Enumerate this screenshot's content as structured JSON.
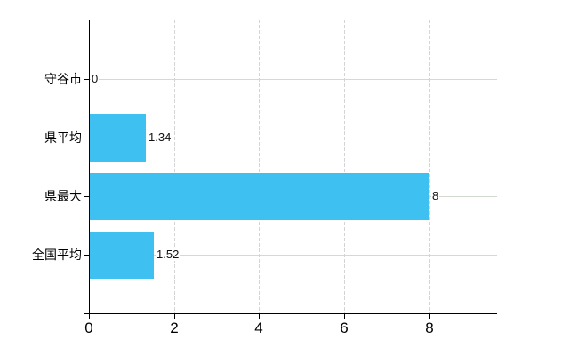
{
  "chart_data": {
    "type": "bar",
    "orientation": "horizontal",
    "categories": [
      "守谷市",
      "県平均",
      "県最大",
      "全国平均"
    ],
    "values": [
      0,
      1.34,
      8,
      1.52
    ],
    "value_labels": [
      "0",
      "1.34",
      "8",
      "1.52"
    ],
    "series": [
      {
        "name": "",
        "values": [
          0,
          1.34,
          8,
          1.52
        ]
      }
    ],
    "x_ticks": [
      0,
      2,
      4,
      6,
      8
    ],
    "x_tick_labels": [
      "0",
      "2",
      "4",
      "6",
      "8"
    ],
    "xlim": [
      0,
      9.59
    ],
    "ylabel": "",
    "xlabel": "",
    "grid": true,
    "legend_position": "none",
    "bar_color": "#3EC1F0",
    "axis_color": "#000000",
    "h_grid_color": "#D3DACF",
    "v_grid_color": "#D4D4D6",
    "top_border_color": "#CDCDCD",
    "text_color": "#000000"
  }
}
